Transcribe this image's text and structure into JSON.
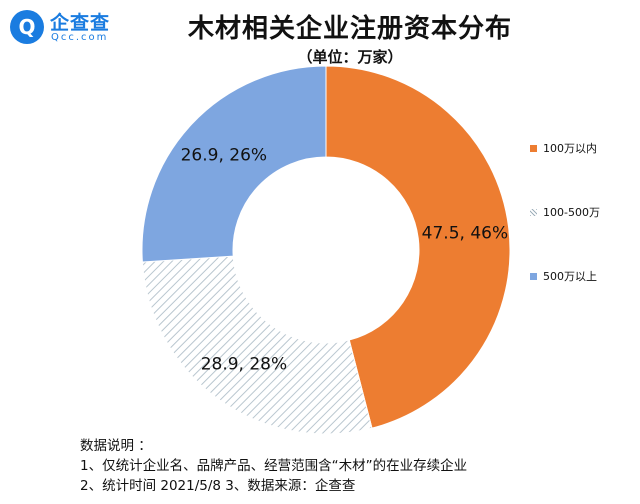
{
  "logo": {
    "mark": "Q",
    "name": "企查查",
    "domain": "Qcc.com"
  },
  "chart_data": {
    "type": "pie",
    "title": "木材相关企业注册资本分布",
    "subtitle": "（单位：万家）",
    "categories": [
      "100万以内",
      "100-500万",
      "500万以上"
    ],
    "values": [
      47.5,
      28.9,
      26.9
    ],
    "percents": [
      46,
      28,
      26
    ],
    "data_labels": [
      "47.5, 46%",
      "28.9, 28%",
      "26.9, 26%"
    ],
    "colors": [
      "#ed7d31",
      "#e8eef2",
      "#7ea6e0"
    ],
    "patterns": [
      "solid",
      "diagonal-hatch",
      "solid"
    ],
    "donut": true,
    "legend_placement": "right"
  },
  "notes": {
    "heading": "数据说明 ：",
    "line1": "1、仅统计企业名、品牌产品、经营范围含“木材”的在业存续企业",
    "line2": "2、统计时间  2021/5/8      3、数据来源：企查查"
  }
}
